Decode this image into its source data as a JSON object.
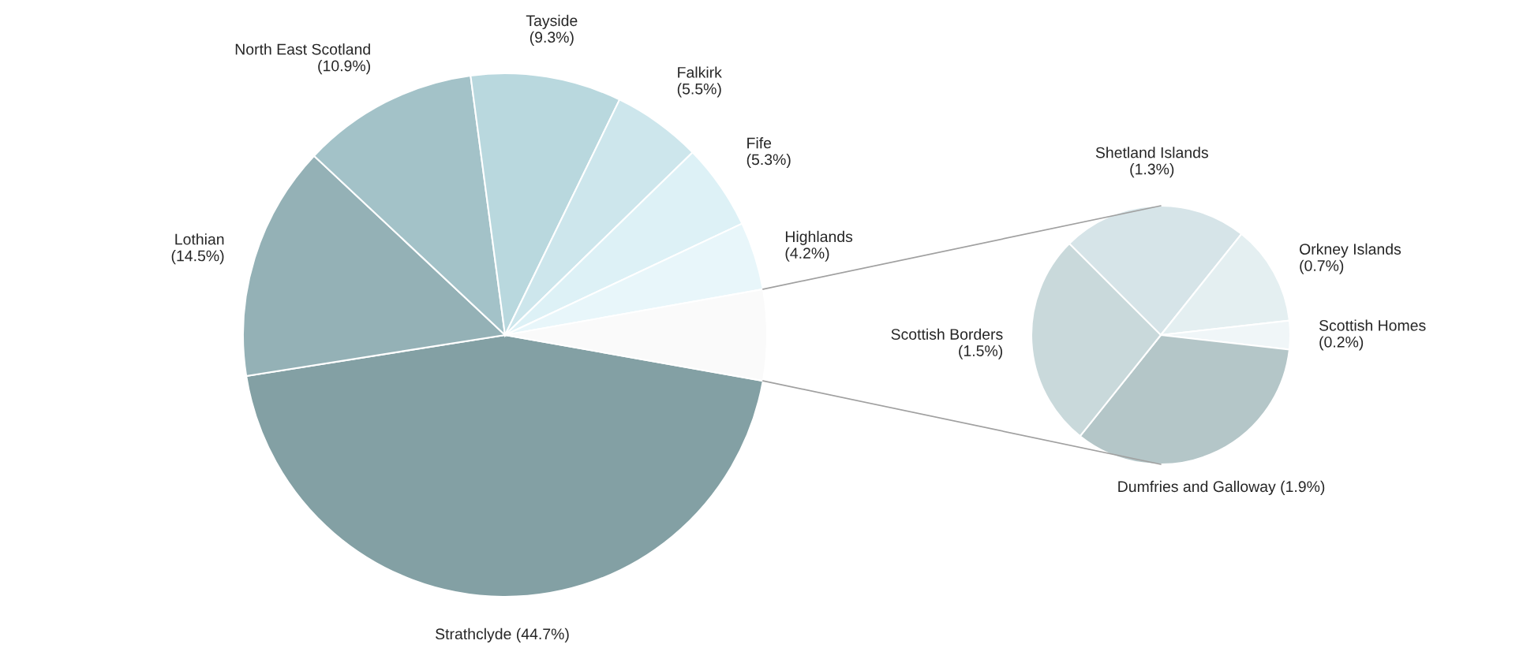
{
  "chart_data": [
    {
      "type": "pie",
      "categories": [
        "Strathclyde",
        "Lothian",
        "North East Scotland",
        "Tayside",
        "Falkirk",
        "Fife",
        "Highlands",
        null
      ],
      "values": [
        44.7,
        14.5,
        10.9,
        9.3,
        5.5,
        5.3,
        4.2,
        5.6
      ],
      "value_labels": [
        "(44.7%)",
        "(14.5%)",
        "(10.9%)",
        "(9.3%)",
        "(5.5%)",
        "(5.3%)",
        "(4.2%)",
        null
      ],
      "colors": [
        "#83a0a4",
        "#94b1b6",
        "#a3c2c8",
        "#b9d8de",
        "#cde6ec",
        "#ddf1f6",
        "#e8f6fa",
        "#fafafa"
      ]
    },
    {
      "type": "pie",
      "categories": [
        "Shetland Islands",
        "Orkney Islands",
        "Scottish Homes",
        "Dumfries and Galloway",
        "Scottish Borders"
      ],
      "values": [
        1.3,
        0.7,
        0.2,
        1.9,
        1.5
      ],
      "value_labels": [
        "(1.3%)",
        "(0.7%)",
        "(0.2%)",
        "(1.9%)",
        "(1.5%)"
      ],
      "colors": [
        "#d6e4e8",
        "#e4eff1",
        "#f0f6f8",
        "#b4c6c8",
        "#c9d9db"
      ]
    }
  ]
}
